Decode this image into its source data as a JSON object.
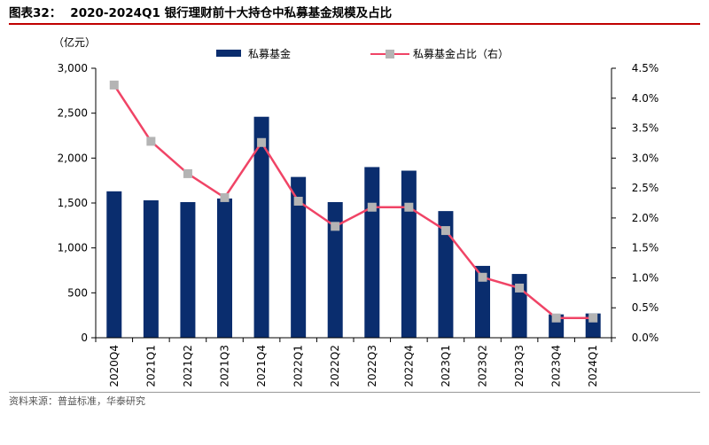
{
  "figure": {
    "label": "图表32：",
    "title": "2020-2024Q1 银行理财前十大持仓中私募基金规模及占比",
    "source": "资料来源：普益标准，华泰研究"
  },
  "colors": {
    "bar": "#0a2d6e",
    "line": "#f04466",
    "marker": "#b4b4b4",
    "title_rule": "#c00000"
  },
  "chart_data": {
    "type": "bar",
    "categories": [
      "2020Q4",
      "2021Q1",
      "2021Q2",
      "2021Q3",
      "2021Q4",
      "2022Q1",
      "2022Q2",
      "2022Q3",
      "2022Q4",
      "2023Q1",
      "2023Q2",
      "2023Q3",
      "2023Q4",
      "2024Q1"
    ],
    "series": [
      {
        "name": "私募基金",
        "type": "bar",
        "axis": "left",
        "values": [
          1630,
          1530,
          1510,
          1550,
          2460,
          1790,
          1510,
          1900,
          1860,
          1410,
          800,
          710,
          260,
          270
        ]
      },
      {
        "name": "私募基金占比（右）",
        "type": "line",
        "axis": "right",
        "values": [
          4.22,
          3.28,
          2.74,
          2.34,
          3.26,
          2.28,
          1.86,
          2.18,
          2.18,
          1.79,
          1.01,
          0.83,
          0.33,
          0.33
        ]
      }
    ],
    "left_axis": {
      "unit_label": "（亿元）",
      "ylim": [
        0,
        3000
      ],
      "ticks": [
        0,
        500,
        1000,
        1500,
        2000,
        2500,
        3000
      ],
      "tick_labels": [
        "0",
        "500",
        "1,000",
        "1,500",
        "2,000",
        "2,500",
        "3,000"
      ]
    },
    "right_axis": {
      "ylim": [
        0,
        4.5
      ],
      "ticks": [
        0,
        0.5,
        1,
        1.5,
        2,
        2.5,
        3,
        3.5,
        4,
        4.5
      ],
      "tick_labels": [
        "0.0%",
        "0.5%",
        "1.0%",
        "1.5%",
        "2.0%",
        "2.5%",
        "3.0%",
        "3.5%",
        "4.0%",
        "4.5%"
      ]
    },
    "legend_position": "top",
    "grid": false
  }
}
